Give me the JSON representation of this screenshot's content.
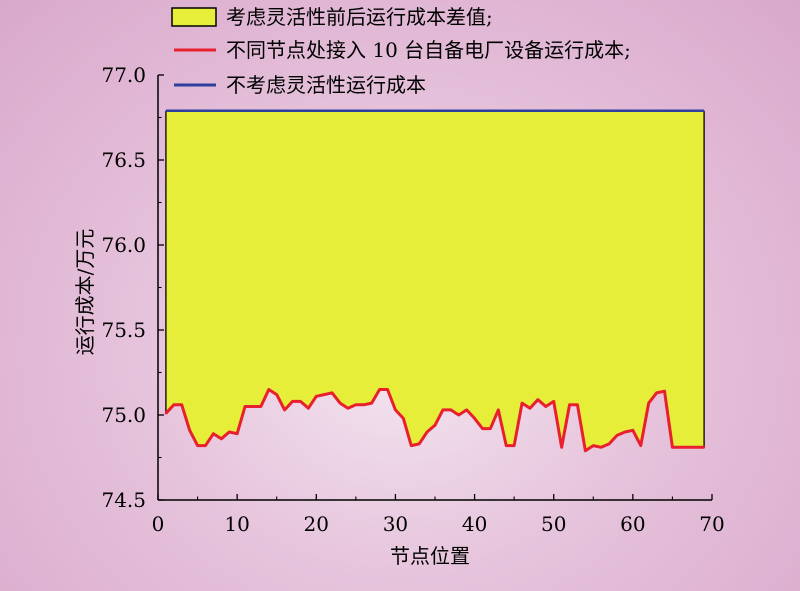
{
  "chart_data": {
    "type": "line",
    "xlabel": "节点位置",
    "ylabel": "运行成本/万元",
    "xlim": [
      0,
      70
    ],
    "ylim": [
      74.5,
      77.0
    ],
    "xticks": [
      0,
      10,
      20,
      30,
      40,
      50,
      60,
      70
    ],
    "xtick_labels": [
      "0",
      "10",
      "20",
      "30",
      "40",
      "50",
      "60",
      "70"
    ],
    "yticks": [
      74.5,
      75.0,
      75.5,
      76.0,
      76.5,
      77.0
    ],
    "ytick_labels": [
      "74.5",
      "75.0",
      "75.5",
      "76.0",
      "76.5",
      "77.0"
    ],
    "grid": false,
    "legend_position": "top",
    "legend": [
      {
        "label": "考虑灵活性前后运行成本差值;",
        "kind": "fill",
        "color": "#e6ee3a"
      },
      {
        "label": "不同节点处接入 10 台自备电厂设备运行成本;",
        "kind": "line",
        "color": "#e8202e"
      },
      {
        "label": "不考虑灵活性运行成本",
        "kind": "line",
        "color": "#2e3f9e"
      }
    ],
    "series": [
      {
        "name": "不考虑灵活性运行成本",
        "color": "#2e3f9e",
        "x": [
          1,
          69
        ],
        "y": [
          76.79,
          76.79
        ]
      },
      {
        "name": "不同节点处接入 10 台自备电厂设备运行成本",
        "color": "#e8202e",
        "x": [
          1,
          2,
          3,
          4,
          5,
          6,
          7,
          8,
          9,
          10,
          11,
          12,
          13,
          14,
          15,
          16,
          17,
          18,
          19,
          20,
          21,
          22,
          23,
          24,
          25,
          26,
          27,
          28,
          29,
          30,
          31,
          32,
          33,
          34,
          35,
          36,
          37,
          38,
          39,
          40,
          41,
          42,
          43,
          44,
          45,
          46,
          47,
          48,
          49,
          50,
          51,
          52,
          53,
          54,
          55,
          56,
          57,
          58,
          59,
          60,
          61,
          62,
          63,
          64,
          65,
          66,
          67,
          68,
          69
        ],
        "y": [
          75.01,
          75.06,
          75.06,
          74.91,
          74.82,
          74.82,
          74.89,
          74.86,
          74.9,
          74.89,
          75.05,
          75.05,
          75.05,
          75.15,
          75.12,
          75.03,
          75.08,
          75.08,
          75.04,
          75.11,
          75.12,
          75.13,
          75.07,
          75.04,
          75.06,
          75.06,
          75.07,
          75.15,
          75.15,
          75.03,
          74.98,
          74.82,
          74.83,
          74.9,
          74.94,
          75.03,
          75.03,
          75.0,
          75.03,
          74.98,
          74.92,
          74.92,
          75.03,
          74.82,
          74.82,
          75.07,
          75.04,
          75.09,
          75.05,
          75.08,
          74.81,
          75.06,
          75.06,
          74.79,
          74.82,
          74.81,
          74.83,
          74.88,
          74.9,
          74.91,
          74.82,
          75.07,
          75.13,
          75.14,
          74.81,
          74.81,
          74.81,
          74.81,
          74.81
        ]
      }
    ],
    "fill_between": {
      "label": "考虑灵活性前后运行成本差值",
      "color": "#e6ee3a",
      "upper_series": "不考虑灵活性运行成本",
      "lower_series": "不同节点处接入 10 台自备电厂设备运行成本"
    }
  }
}
